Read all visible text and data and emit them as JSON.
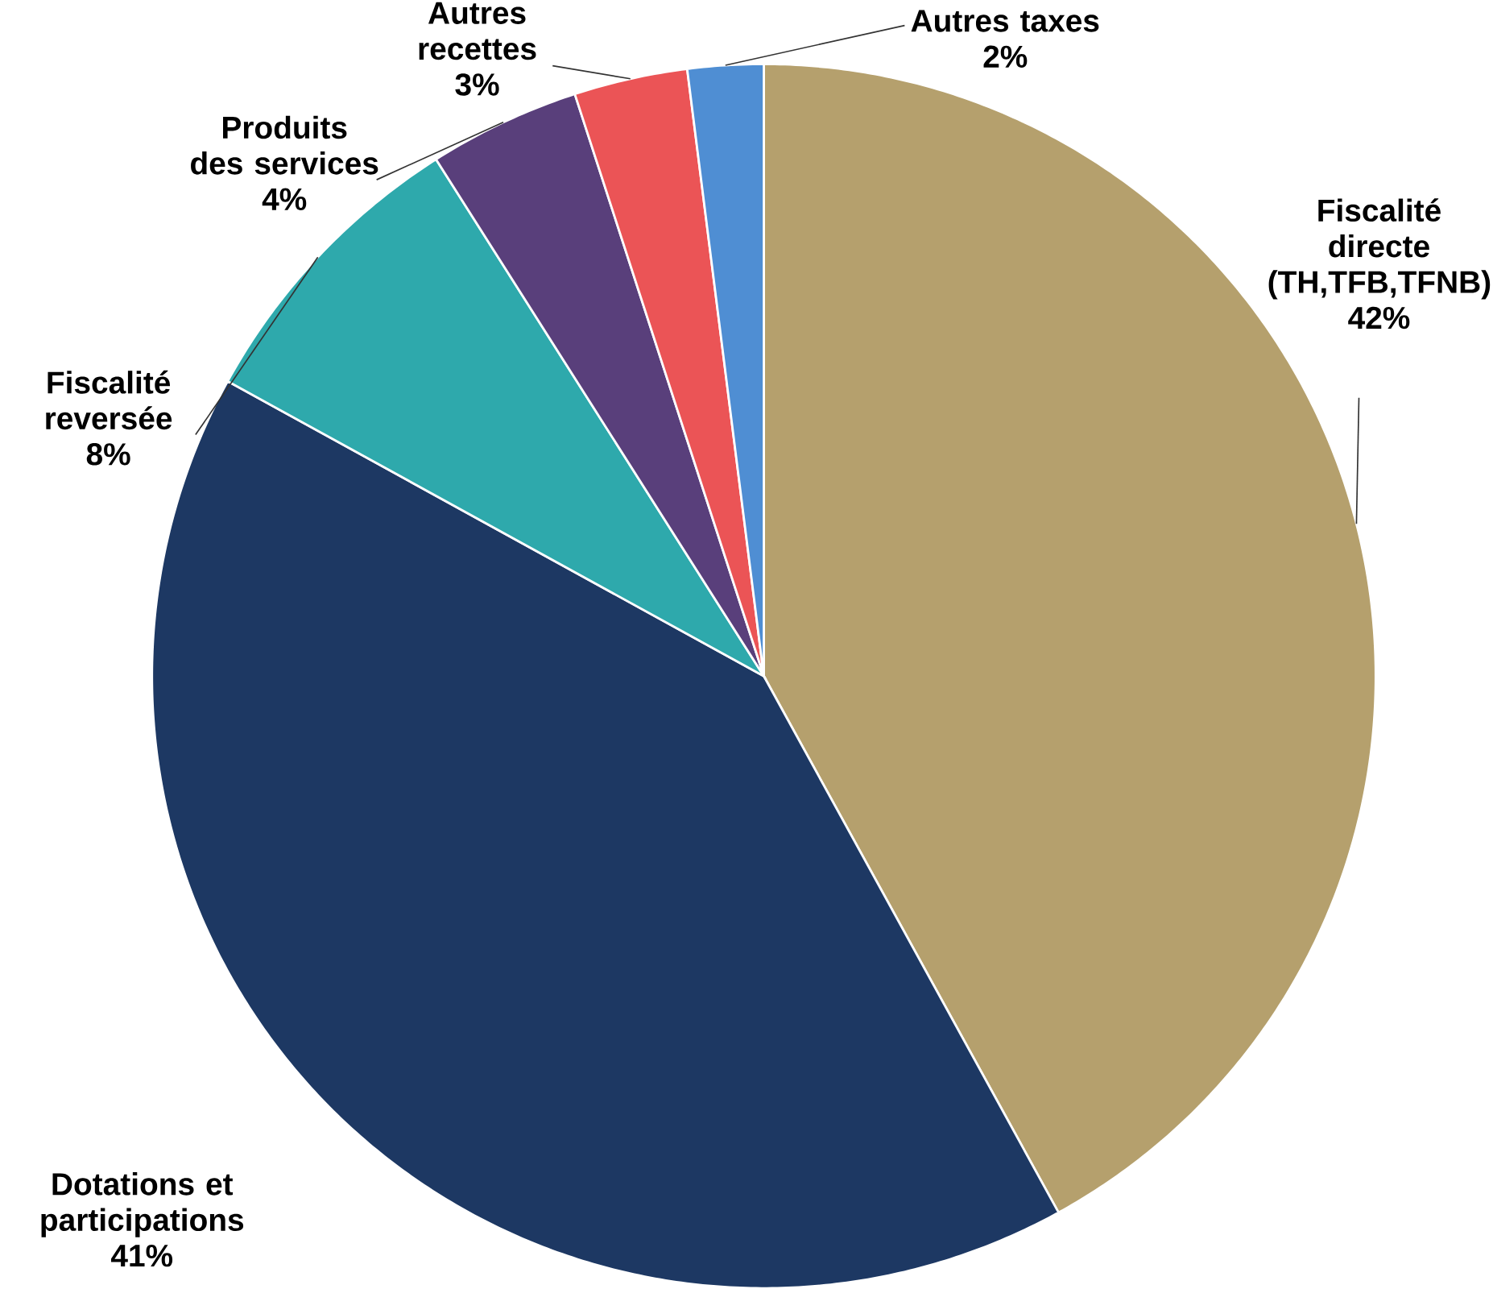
{
  "chart_data": {
    "type": "pie",
    "categories": [
      "Fiscalité directe (TH,TFB,TFNB)",
      "Dotations et participations",
      "Fiscalité reversée",
      "Produits des services",
      "Autres recettes",
      "Autres taxes"
    ],
    "values": [
      42,
      41,
      8,
      4,
      3,
      2
    ],
    "value_labels": [
      "42%",
      "41%",
      "8%",
      "4%",
      "3%",
      "2%"
    ],
    "colors": [
      "#b5a06d",
      "#1d3863",
      "#2ea9ac",
      "#593f7b",
      "#eb5456",
      "#4f8ed3"
    ]
  }
}
